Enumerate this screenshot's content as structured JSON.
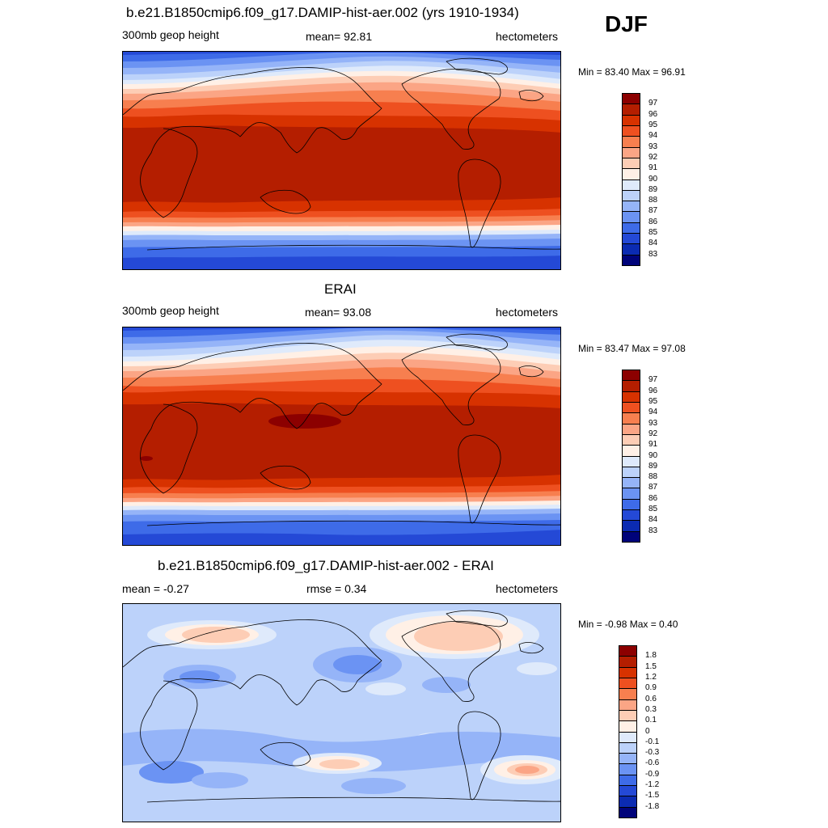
{
  "season": "DJF",
  "panels": [
    {
      "title": "b.e21.B1850cmip6.f09_g17.DAMIP-hist-aer.002 (yrs 1910-1934)",
      "left_label": "300mb geop height",
      "center_label": "mean=  92.81",
      "right_label": "hectometers",
      "minmax": "Min =  83.40 Max =  96.91",
      "map_name": "model-map",
      "colorbar": {
        "colors": [
          "#8c0000",
          "#b41e00",
          "#d73200",
          "#ee5020",
          "#f77f4f",
          "#fba585",
          "#fdcdb5",
          "#fff0e6",
          "#dfeafb",
          "#bcd2fa",
          "#95b4f8",
          "#6b93f3",
          "#3e6be8",
          "#2449d6",
          "#0b2bb2",
          "#00037a"
        ],
        "labels": [
          "97",
          "96",
          "95",
          "94",
          "93",
          "92",
          "91",
          "90",
          "89",
          "88",
          "87",
          "86",
          "85",
          "84",
          "83"
        ]
      }
    },
    {
      "title": "ERAI",
      "left_label": "300mb geop height",
      "center_label": "mean=  93.08",
      "right_label": "hectometers",
      "minmax": "Min =  83.47 Max =  97.08",
      "map_name": "obs-map",
      "colorbar": {
        "colors": [
          "#8c0000",
          "#b41e00",
          "#d73200",
          "#ee5020",
          "#f77f4f",
          "#fba585",
          "#fdcdb5",
          "#fff0e6",
          "#dfeafb",
          "#bcd2fa",
          "#95b4f8",
          "#6b93f3",
          "#3e6be8",
          "#2449d6",
          "#0b2bb2",
          "#00037a"
        ],
        "labels": [
          "97",
          "96",
          "95",
          "94",
          "93",
          "92",
          "91",
          "90",
          "89",
          "88",
          "87",
          "86",
          "85",
          "84",
          "83"
        ]
      }
    },
    {
      "title": "b.e21.B1850cmip6.f09_g17.DAMIP-hist-aer.002 - ERAI",
      "left_label": "mean =  -0.27",
      "center_label": "rmse =   0.34",
      "right_label": "hectometers",
      "minmax": "Min =  -0.98 Max =   0.40",
      "map_name": "diff-map",
      "colorbar": {
        "colors": [
          "#8c0000",
          "#b41e00",
          "#d73200",
          "#ee5020",
          "#f77f4f",
          "#fba585",
          "#fdcdb5",
          "#fff0e6",
          "#dfeafb",
          "#bcd2fa",
          "#95b4f8",
          "#6b93f3",
          "#3e6be8",
          "#2449d6",
          "#0b2bb2",
          "#00037a"
        ],
        "labels": [
          "1.8",
          "1.5",
          "1.2",
          "0.9",
          "0.6",
          "0.3",
          "0.1",
          "0",
          "-0.1",
          "-0.3",
          "-0.6",
          "-0.9",
          "-1.2",
          "-1.5",
          "-1.8"
        ]
      }
    }
  ]
}
